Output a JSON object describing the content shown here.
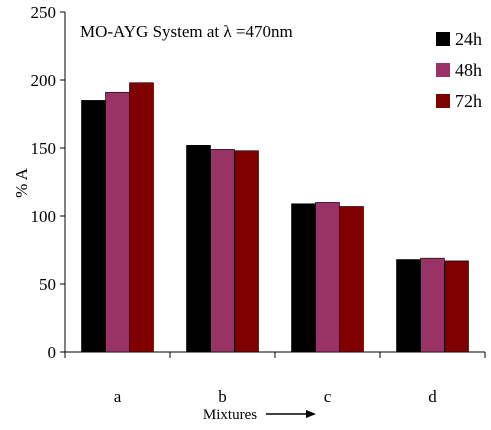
{
  "chart_data": {
    "type": "bar",
    "title": "MO-AYG System at λ =470nm",
    "xlabel": "Mixtures",
    "ylabel": "% A",
    "categories": [
      "a",
      "b",
      "c",
      "d"
    ],
    "ylim": [
      0,
      250
    ],
    "yticks": [
      "0",
      "50",
      "100",
      "150",
      "200",
      "250"
    ],
    "grid": false,
    "legend_position": "top-right",
    "series": [
      {
        "name": "24h",
        "color": "#000000",
        "values": [
          185,
          152,
          109,
          68
        ]
      },
      {
        "name": "48h",
        "color": "#993366",
        "values": [
          191,
          149,
          110,
          69
        ]
      },
      {
        "name": "72h",
        "color": "#800000",
        "values": [
          198,
          148,
          107,
          67
        ]
      }
    ]
  }
}
